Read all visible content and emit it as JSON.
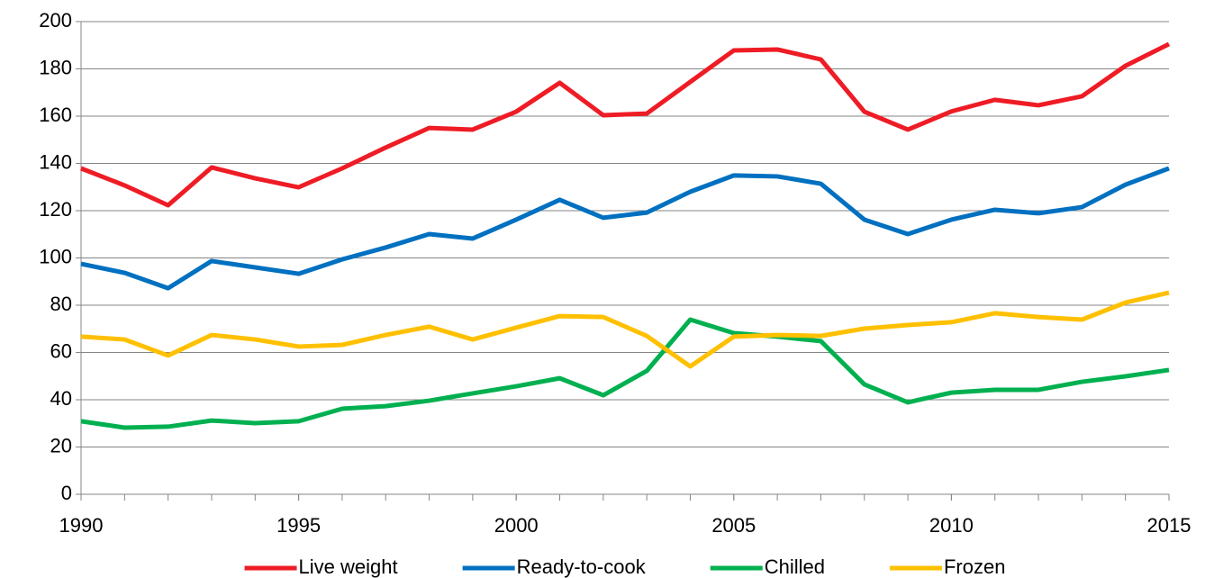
{
  "chart_data": {
    "type": "line",
    "x": [
      1990,
      1991,
      1992,
      1993,
      1994,
      1995,
      1996,
      1997,
      1998,
      1999,
      2000,
      2001,
      2002,
      2003,
      2004,
      2005,
      2006,
      2007,
      2008,
      2009,
      2010,
      2011,
      2012,
      2013,
      2014,
      2015
    ],
    "series": [
      {
        "name": "Live weight",
        "color": "#ee1c25",
        "values": [
          137.9,
          130.7,
          122.3,
          138.3,
          133.7,
          129.9,
          137.9,
          146.7,
          155,
          154.3,
          161.9,
          174.1,
          160.4,
          161.1,
          174.5,
          187.8,
          188.2,
          184,
          161.9,
          154.3,
          162,
          166.9,
          164.6,
          168.4,
          181.3,
          190.5
        ]
      },
      {
        "name": "Ready-to-cook",
        "color": "#0070c0",
        "values": [
          97.5,
          93.7,
          87.2,
          98.7,
          96,
          93.3,
          99.4,
          104.4,
          110.1,
          108.2,
          116.2,
          124.6,
          117,
          119.2,
          128,
          134.9,
          134.5,
          131.4,
          116.2,
          110.1,
          116.2,
          120.4,
          118.9,
          121.5,
          131,
          137.9
        ]
      },
      {
        "name": "Chilled",
        "color": "#00b050",
        "values": [
          30.9,
          28.2,
          28.6,
          31.2,
          30.1,
          30.9,
          36.2,
          37.3,
          39.6,
          42.7,
          45.7,
          49.1,
          41.9,
          52.2,
          73.9,
          68.2,
          66.7,
          64.8,
          46.5,
          38.9,
          43,
          44.2,
          44.2,
          47.6,
          49.9,
          52.6
        ]
      },
      {
        "name": "Frozen",
        "color": "#ffc000",
        "values": [
          66.7,
          65.5,
          58.7,
          67.4,
          65.5,
          62.5,
          63.2,
          67.4,
          70.9,
          65.5,
          70.5,
          75.4,
          75,
          67,
          54.1,
          66.7,
          67.4,
          67,
          70.1,
          71.6,
          72.8,
          76.6,
          75,
          73.9,
          81.1,
          85.3
        ]
      }
    ],
    "xlim": [
      1990,
      2015
    ],
    "xticks": [
      1990,
      1995,
      2000,
      2005,
      2010,
      2015
    ],
    "ylim": [
      0,
      200
    ],
    "yticks": [
      0,
      20,
      40,
      60,
      80,
      100,
      120,
      140,
      160,
      180,
      200
    ],
    "grid": true,
    "legend": "bottom"
  }
}
